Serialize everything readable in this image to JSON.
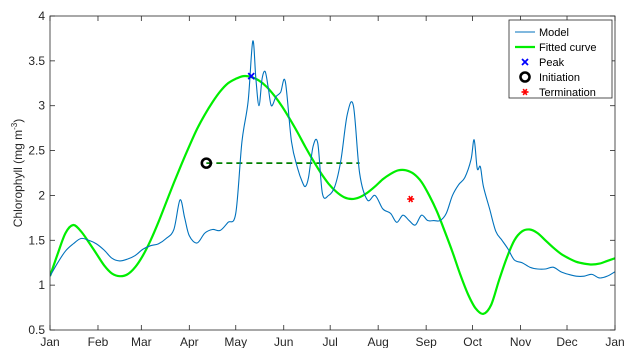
{
  "chart_data": {
    "type": "line",
    "title": "",
    "xlabel": "",
    "ylabel": "Chlorophyll (mg m",
    "ylabel_sup": "-3",
    "ylabel_close": ")",
    "xlim": [
      0,
      365
    ],
    "ylim": [
      0.5,
      4
    ],
    "yticks": [
      0.5,
      1,
      1.5,
      2,
      2.5,
      3,
      3.5,
      4
    ],
    "ytick_labels": [
      "0.5",
      "1",
      "1.5",
      "2",
      "2.5",
      "3",
      "3.5",
      "4"
    ],
    "xticks": [
      0,
      31,
      59,
      90,
      120,
      151,
      181,
      212,
      243,
      273,
      304,
      334,
      365
    ],
    "xtick_labels": [
      "Jan",
      "Feb",
      "Mar",
      "Apr",
      "May",
      "Jun",
      "Jul",
      "Aug",
      "Sep",
      "Oct",
      "Nov",
      "Dec",
      "Jan"
    ],
    "grid": false,
    "legend_position": "top-right",
    "colors": {
      "model": "#0072BD",
      "fitted": "#00EE00",
      "peak": "#0000FF",
      "initiation": "#000000",
      "termination": "#FF0000",
      "duration_line": "#008000"
    },
    "series": [
      {
        "name": "Model",
        "x": [
          0,
          5,
          10,
          15,
          20,
          25,
          30,
          35,
          40,
          45,
          50,
          55,
          60,
          65,
          70,
          75,
          80,
          84,
          87,
          90,
          95,
          100,
          105,
          110,
          115,
          120,
          124,
          128,
          131,
          133,
          135,
          137,
          139,
          141,
          143,
          146,
          149,
          152,
          156,
          160,
          163,
          165,
          167,
          170,
          173,
          176,
          180,
          184,
          188,
          192,
          196,
          200,
          205,
          210,
          215,
          220,
          224,
          228,
          232,
          236,
          240,
          244,
          248,
          252,
          256,
          260,
          264,
          268,
          272,
          274,
          276,
          278,
          280,
          284,
          288,
          292,
          296,
          300,
          305,
          310,
          315,
          320,
          325,
          330,
          335,
          340,
          345,
          350,
          355,
          360,
          365
        ],
        "y": [
          1.1,
          1.25,
          1.38,
          1.46,
          1.52,
          1.5,
          1.46,
          1.39,
          1.3,
          1.27,
          1.29,
          1.33,
          1.4,
          1.44,
          1.46,
          1.52,
          1.62,
          1.95,
          1.75,
          1.55,
          1.47,
          1.58,
          1.62,
          1.61,
          1.7,
          1.8,
          2.6,
          3.05,
          3.72,
          3.3,
          3.0,
          3.3,
          3.38,
          3.2,
          3.0,
          3.1,
          3.15,
          3.27,
          2.6,
          2.3,
          2.15,
          2.1,
          2.2,
          2.55,
          2.58,
          2.02,
          2.0,
          2.1,
          2.4,
          2.9,
          3.0,
          2.25,
          1.95,
          2.0,
          1.85,
          1.8,
          1.7,
          1.78,
          1.72,
          1.67,
          1.78,
          1.72,
          1.72,
          1.72,
          1.8,
          2.0,
          2.12,
          2.2,
          2.4,
          2.62,
          2.3,
          2.32,
          2.1,
          1.85,
          1.6,
          1.5,
          1.4,
          1.28,
          1.25,
          1.2,
          1.18,
          1.18,
          1.2,
          1.15,
          1.12,
          1.1,
          1.1,
          1.12,
          1.08,
          1.1,
          1.15
        ]
      },
      {
        "name": "Fitted curve",
        "x": [
          0,
          5,
          10,
          15,
          20,
          25,
          30,
          35,
          40,
          45,
          50,
          55,
          60,
          65,
          70,
          75,
          80,
          85,
          90,
          95,
          100,
          105,
          110,
          115,
          120,
          125,
          130,
          135,
          140,
          145,
          150,
          155,
          160,
          165,
          170,
          175,
          180,
          185,
          190,
          195,
          200,
          205,
          210,
          215,
          220,
          225,
          230,
          235,
          240,
          245,
          250,
          255,
          260,
          265,
          270,
          275,
          280,
          285,
          290,
          295,
          300,
          305,
          310,
          315,
          320,
          325,
          330,
          335,
          340,
          345,
          350,
          355,
          360,
          365
        ],
        "y": [
          1.1,
          1.35,
          1.58,
          1.67,
          1.6,
          1.48,
          1.35,
          1.22,
          1.13,
          1.1,
          1.12,
          1.2,
          1.33,
          1.5,
          1.7,
          1.92,
          2.14,
          2.35,
          2.55,
          2.74,
          2.9,
          3.04,
          3.16,
          3.25,
          3.3,
          3.33,
          3.32,
          3.28,
          3.21,
          3.11,
          2.99,
          2.85,
          2.7,
          2.54,
          2.39,
          2.25,
          2.13,
          2.04,
          1.98,
          1.96,
          1.98,
          2.03,
          2.1,
          2.18,
          2.24,
          2.28,
          2.28,
          2.24,
          2.15,
          2.0,
          1.82,
          1.6,
          1.37,
          1.12,
          0.9,
          0.74,
          0.68,
          0.78,
          1.05,
          1.3,
          1.5,
          1.6,
          1.62,
          1.58,
          1.5,
          1.42,
          1.35,
          1.3,
          1.26,
          1.24,
          1.23,
          1.24,
          1.27,
          1.3
        ]
      }
    ],
    "markers": [
      {
        "name": "Peak",
        "x": 130,
        "y": 3.33,
        "symbol": "x"
      },
      {
        "name": "Initiation",
        "x": 101,
        "y": 2.36,
        "symbol": "o"
      },
      {
        "name": "Termination",
        "x": 233,
        "y": 1.96,
        "symbol": "*"
      }
    ],
    "duration_line": {
      "x": [
        101,
        200
      ],
      "y": 2.36
    }
  }
}
